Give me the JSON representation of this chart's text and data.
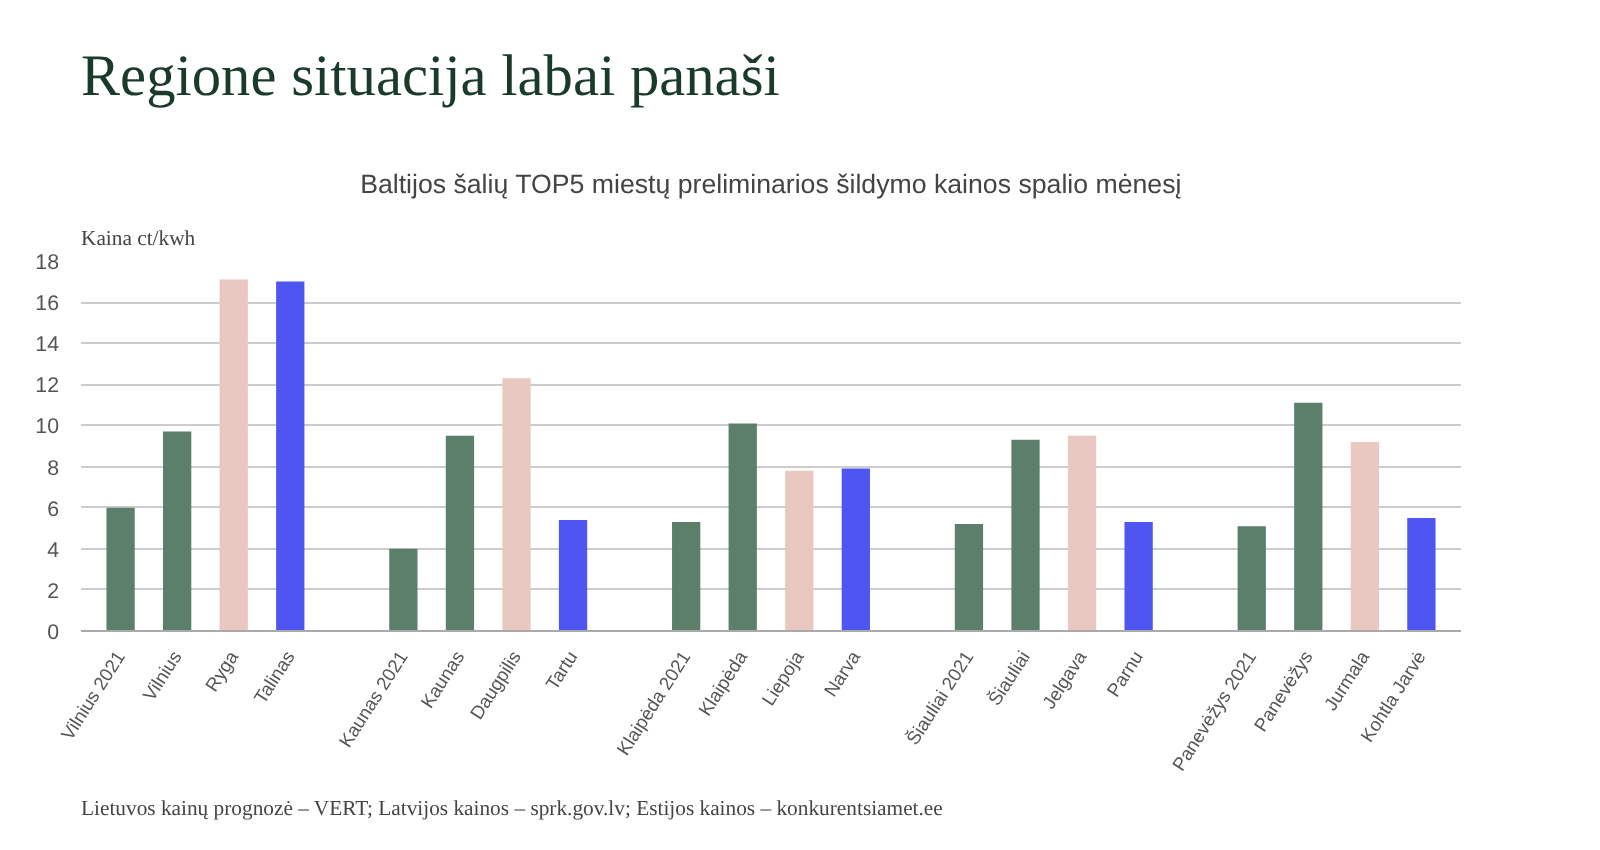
{
  "chart_data": {
    "type": "bar",
    "title": "Regione situacija labai panaši",
    "subtitle": "Baltijos šalių TOP5 miestų preliminarios šildymo kainos spalio mėnesį",
    "ylabel": "Kaina ct/kwh",
    "categories": [
      "Vilnius 2021",
      "Vilnius",
      "Ryga",
      "Talinas",
      null,
      "Kaunas 2021",
      "Kaunas",
      "Daugpilis",
      "Tartu",
      null,
      "Klaipėda 2021",
      "Klaipėda",
      "Liepoja",
      "Narva",
      null,
      "Šiauliai 2021",
      "Šiauliai",
      "Jelgava",
      "Parnu",
      null,
      "Panevėžys 2021",
      "Panevėžys",
      "Jurmala",
      "Kohtla Jarvė"
    ],
    "values": [
      6.0,
      9.7,
      17.1,
      17.0,
      null,
      4.0,
      9.5,
      12.3,
      5.4,
      null,
      5.3,
      10.1,
      7.8,
      7.9,
      null,
      5.2,
      9.3,
      9.5,
      5.3,
      null,
      5.1,
      11.1,
      9.2,
      5.5
    ],
    "colors": [
      "#5b7f6b",
      "#5b7f6b",
      "#e8c8c0",
      "#4f55f0",
      null,
      "#5b7f6b",
      "#5b7f6b",
      "#e8c8c0",
      "#4f55f0",
      null,
      "#5b7f6b",
      "#5b7f6b",
      "#e8c8c0",
      "#4f55f0",
      null,
      "#5b7f6b",
      "#5b7f6b",
      "#e8c8c0",
      "#4f55f0",
      null,
      "#5b7f6b",
      "#5b7f6b",
      "#e8c8c0",
      "#4f55f0"
    ],
    "ylim": [
      0,
      18
    ],
    "yticks": [
      0,
      2,
      4,
      6,
      8,
      10,
      12,
      14,
      16,
      18
    ],
    "grid": "y",
    "annotations": [
      "Lietuvos kainų prognozė – VERT; Latvijos kainos – sprk.gov.lv; Estijos kainos – konkurentsiamet.ee"
    ]
  }
}
